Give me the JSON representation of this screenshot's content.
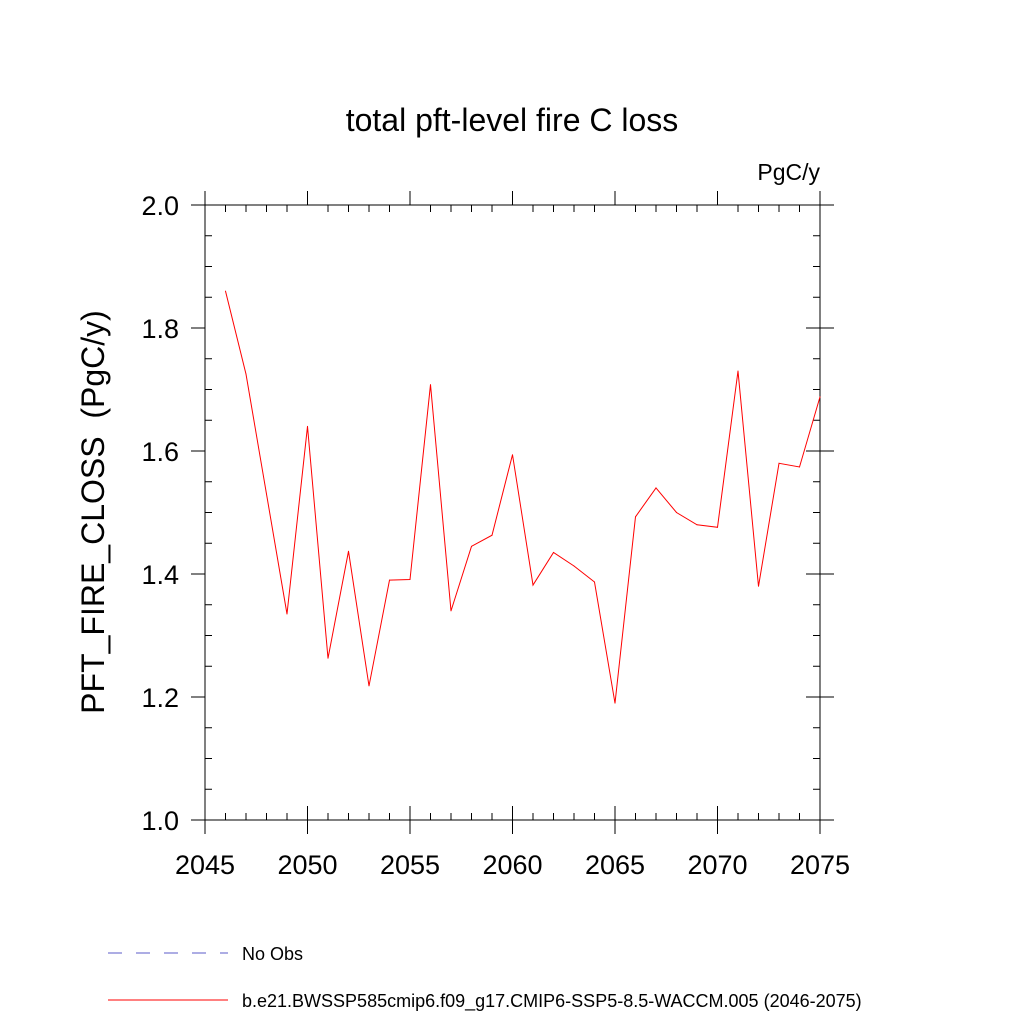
{
  "chart_data": {
    "type": "line",
    "title": "total pft-level fire C loss",
    "units": "PgC/y",
    "xlabel": "",
    "ylabel": "PFT_FIRE_CLOSS  (PgC/y)",
    "xlim": [
      2045,
      2075
    ],
    "ylim": [
      1.0,
      2.0
    ],
    "x_major_ticks": [
      2045,
      2050,
      2055,
      2060,
      2065,
      2070,
      2075
    ],
    "y_major_ticks": [
      1.0,
      1.2,
      1.4,
      1.6,
      1.8,
      2.0
    ],
    "x_tick_labels": [
      "2045",
      "2050",
      "2055",
      "2060",
      "2065",
      "2070",
      "2075"
    ],
    "y_tick_labels": [
      "1.0",
      "1.2",
      "1.4",
      "1.6",
      "1.8",
      "2.0"
    ],
    "grid": false,
    "legend_position": "bottom",
    "series": [
      {
        "name": "b.e21.BWSSP585cmip6.f09_g17.CMIP6-SSP5-8.5-WACCM.005 (2046-2075)",
        "color": "#ff0000",
        "style": "solid",
        "x": [
          2046,
          2047,
          2048,
          2049,
          2050,
          2051,
          2052,
          2053,
          2054,
          2055,
          2056,
          2057,
          2058,
          2059,
          2060,
          2061,
          2062,
          2063,
          2064,
          2065,
          2066,
          2067,
          2068,
          2069,
          2070,
          2071,
          2072,
          2073,
          2074,
          2075
        ],
        "values": [
          1.86,
          1.725,
          1.53,
          1.335,
          1.64,
          1.263,
          1.437,
          1.218,
          1.39,
          1.391,
          1.708,
          1.34,
          1.445,
          1.463,
          1.594,
          1.382,
          1.435,
          1.413,
          1.387,
          1.19,
          1.493,
          1.54,
          1.5,
          1.48,
          1.476,
          1.73,
          1.38,
          1.58,
          1.574,
          1.688
        ]
      }
    ],
    "legend": [
      {
        "label": "No Obs",
        "color": "#5b5bc8",
        "style": "dashed"
      },
      {
        "label": "b.e21.BWSSP585cmip6.f09_g17.CMIP6-SSP5-8.5-WACCM.005 (2046-2075)",
        "color": "#ff0000",
        "style": "solid"
      }
    ]
  }
}
